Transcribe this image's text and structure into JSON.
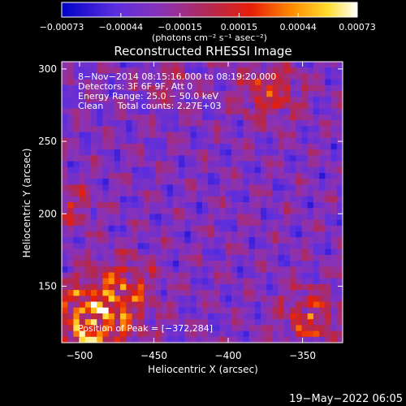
{
  "chart_data": {
    "type": "heatmap",
    "title": "Reconstructed RHESSI Image",
    "xlabel": "Heliocentric X (arcsec)",
    "ylabel": "Heliocentric Y (arcsec)",
    "xlim": [
      -512,
      -323
    ],
    "ylim": [
      111,
      305
    ],
    "x_ticks": [
      {
        "value": -500,
        "label": "−500"
      },
      {
        "value": -450,
        "label": "−450"
      },
      {
        "value": -400,
        "label": "−400"
      },
      {
        "value": -350,
        "label": "−350"
      }
    ],
    "y_ticks": [
      {
        "value": 150,
        "label": "150"
      },
      {
        "value": 200,
        "label": "200"
      },
      {
        "value": 250,
        "label": "250"
      },
      {
        "value": 300,
        "label": "300"
      }
    ],
    "colorbar": {
      "min": -0.00073,
      "max": 0.00073,
      "tick_labels": [
        "−0.00073",
        "−0.00044",
        "−0.00015",
        "0.00015",
        "0.00044",
        "0.00073"
      ],
      "units": "(photons cm⁻² s⁻¹ asec⁻²)",
      "colormap": [
        "#0000c8",
        "#5a2ee0",
        "#8c32b4",
        "#b42850",
        "#e61e0a",
        "#ff8c00",
        "#ffdc2d",
        "#ffffff"
      ]
    },
    "annotations": [
      "8−Nov−2014 08:15:16.000 to 08:19:20.000",
      "Detectors: 3F 6F 9F, Att 0",
      "Energy Range: 25.0 − 50.0 keV",
      "Clean     Total counts: 2.27E+03"
    ],
    "peak": {
      "x": -372,
      "y": 284,
      "label": "Position of Peak = [−372,284]"
    },
    "grid": false
  },
  "footer": {
    "timestamp": "19−May−2022 06:05"
  }
}
